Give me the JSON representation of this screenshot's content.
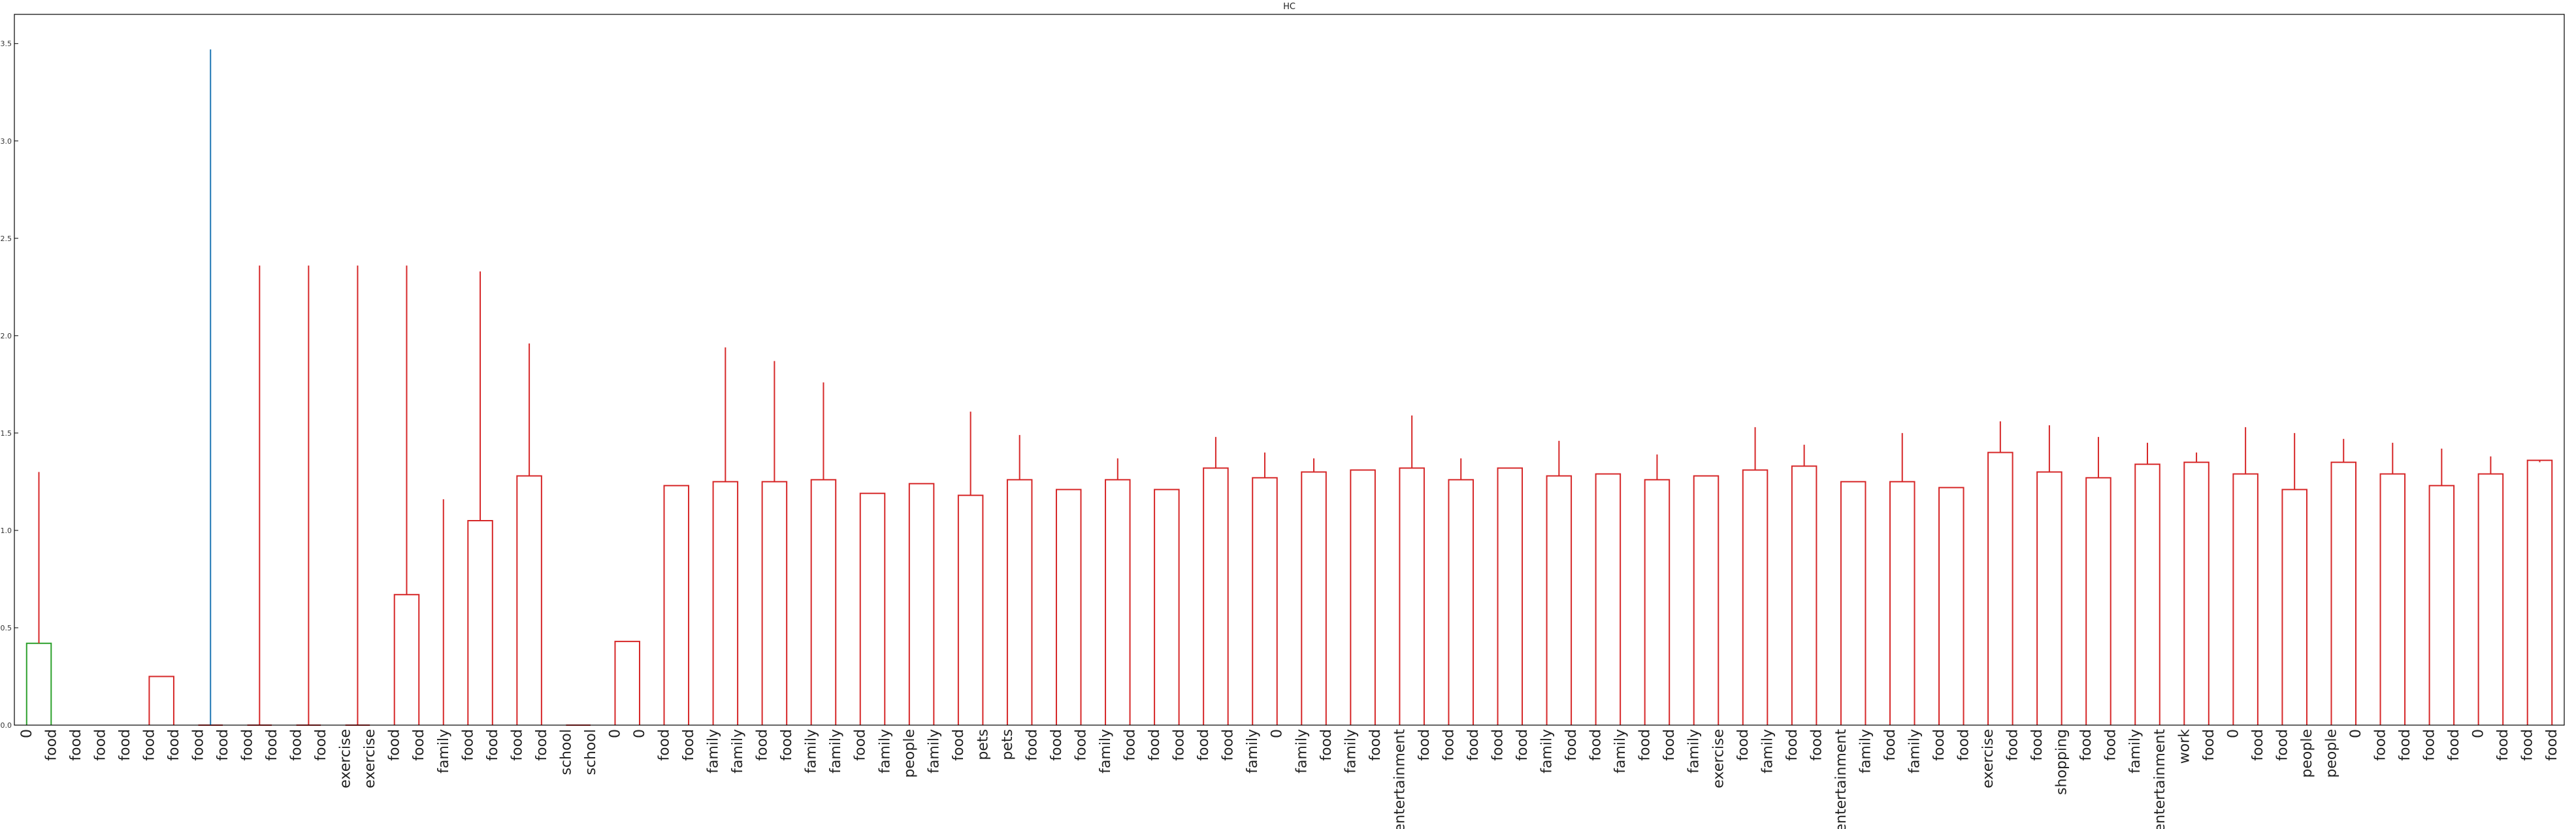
{
  "chart_data": {
    "type": "dendrogram",
    "title": "HC",
    "xlabel": "",
    "ylabel": "",
    "ylim": [
      0,
      3.65
    ],
    "yticks": [
      0.0,
      0.5,
      1.0,
      1.5,
      2.0,
      2.5,
      3.0,
      3.5
    ],
    "ytick_labels": [
      "0.0",
      "0.5",
      "1.0",
      "1.5",
      "2.0",
      "2.5",
      "3.0",
      "3.5"
    ],
    "grid": false,
    "colors": {
      "cluster_a": "#2ca02c",
      "cluster_b": "#d62728",
      "root": "#1f77b4",
      "axes": "#000000"
    },
    "leaves": [
      "0",
      "food",
      "food",
      "food",
      "food",
      "food",
      "food",
      "food",
      "food",
      "food",
      "food",
      "food",
      "food",
      "exercise",
      "exercise",
      "food",
      "food",
      "family",
      "food",
      "food",
      "food",
      "food",
      "school",
      "school",
      "0",
      "0",
      "food",
      "food",
      "family",
      "family",
      "food",
      "food",
      "family",
      "family",
      "food",
      "family",
      "people",
      "family",
      "food",
      "pets",
      "pets",
      "food",
      "food",
      "food",
      "family",
      "food",
      "food",
      "food",
      "food",
      "food",
      "family",
      "0",
      "family",
      "food",
      "family",
      "food",
      "entertainment",
      "food",
      "food",
      "food",
      "food",
      "food",
      "family",
      "food",
      "food",
      "family",
      "food",
      "food",
      "family",
      "exercise",
      "food",
      "family",
      "food",
      "food",
      "entertainment",
      "family",
      "food",
      "family",
      "food",
      "food",
      "exercise",
      "food",
      "food",
      "shopping",
      "food",
      "food",
      "family",
      "entertainment",
      "work",
      "food",
      "0",
      "food",
      "food",
      "people",
      "people",
      "0",
      "food",
      "food",
      "food",
      "food",
      "0",
      "food",
      "food",
      "food"
    ],
    "merges": [
      {
        "l": 0,
        "r": 1,
        "h": 0.42,
        "c": "cluster_a"
      },
      {
        "l": 106,
        "r": 1.5,
        "h": 0.0,
        "c": "cluster_a"
      },
      {
        "l": 107,
        "r": 2.5,
        "h": 0.0,
        "c": "cluster_a"
      },
      {
        "l": 108,
        "r": 3.5,
        "h": 0.0,
        "c": "cluster_a"
      },
      {
        "l": 5,
        "r": 6,
        "h": 0.25,
        "c": "cluster_b"
      },
      {
        "l": 7,
        "r": 8,
        "h": 0.0,
        "c": "cluster_b"
      },
      {
        "l": 9,
        "r": 10,
        "h": 0.0,
        "c": "cluster_b"
      },
      {
        "l": 11,
        "r": 12,
        "h": 0.0,
        "c": "cluster_b"
      },
      {
        "l": 13,
        "r": 14,
        "h": 0.0,
        "c": "cluster_b"
      },
      {
        "l": 15,
        "r": 16,
        "h": 0.67,
        "c": "cluster_b"
      },
      {
        "l": 18,
        "r": 19,
        "h": 1.05,
        "c": "cluster_b"
      },
      {
        "l": 17,
        "r": 118.5,
        "h": 1.16,
        "c": "cluster_b"
      },
      {
        "l": 20,
        "r": 21,
        "h": 1.28,
        "c": "cluster_b"
      },
      {
        "l": 119,
        "r": 120,
        "h": 1.33,
        "c": "cluster_b"
      },
      {
        "l": 117,
        "r": 121,
        "h": 1.71,
        "c": "cluster_b"
      },
      {
        "l": 22,
        "r": 23,
        "h": 0.0,
        "c": "cluster_b"
      },
      {
        "l": 24,
        "r": 25,
        "h": 0.43,
        "c": "cluster_b"
      },
      {
        "l": 26,
        "r": 27,
        "h": 1.23,
        "c": "cluster_b"
      },
      {
        "l": 28,
        "r": 29,
        "h": 1.25,
        "c": "cluster_b"
      },
      {
        "l": 30,
        "r": 31,
        "h": 1.25,
        "c": "cluster_b"
      },
      {
        "l": 32,
        "r": 33,
        "h": 1.26,
        "c": "cluster_b"
      },
      {
        "l": 126,
        "r": 127,
        "h": 1.33,
        "c": "cluster_b"
      },
      {
        "l": 125,
        "r": 128,
        "h": 1.36,
        "c": "cluster_b"
      },
      {
        "l": 34,
        "r": 35,
        "h": 1.19,
        "c": "cluster_b"
      },
      {
        "l": 36,
        "r": 37,
        "h": 1.24,
        "c": "cluster_b"
      },
      {
        "l": 38,
        "r": 39,
        "h": 1.18,
        "c": "cluster_b"
      },
      {
        "l": 40,
        "r": 41,
        "h": 1.26,
        "c": "cluster_b"
      },
      {
        "l": 131,
        "r": 132,
        "h": 1.47,
        "c": "cluster_b"
      },
      {
        "l": 130,
        "r": 133,
        "h": 1.49,
        "c": "cluster_b"
      },
      {
        "l": 129,
        "r": 134,
        "h": 1.61,
        "c": "cluster_b"
      },
      {
        "l": 42,
        "r": 43,
        "h": 1.21,
        "c": "cluster_b"
      },
      {
        "l": 44,
        "r": 45,
        "h": 1.26,
        "c": "cluster_b"
      },
      {
        "l": 136,
        "r": 137,
        "h": 1.31,
        "c": "cluster_b"
      },
      {
        "l": 135,
        "r": 138,
        "h": 1.37,
        "c": "cluster_b"
      },
      {
        "l": 46,
        "r": 47,
        "h": 1.21,
        "c": "cluster_b"
      },
      {
        "l": 48,
        "r": 49,
        "h": 1.32,
        "c": "cluster_b"
      },
      {
        "l": 50,
        "r": 51,
        "h": 1.27,
        "c": "cluster_b"
      },
      {
        "l": 52,
        "r": 53,
        "h": 1.3,
        "c": "cluster_b"
      },
      {
        "l": 142,
        "r": 143,
        "h": 1.33,
        "c": "cluster_b"
      },
      {
        "l": 141,
        "r": 144,
        "h": 1.37,
        "c": "cluster_b"
      },
      {
        "l": 140,
        "r": 145,
        "h": 1.4,
        "c": "cluster_b"
      },
      {
        "l": 139,
        "r": 146,
        "h": 1.48,
        "c": "cluster_b"
      },
      {
        "l": 54,
        "r": 55,
        "h": 1.31,
        "c": "cluster_b"
      },
      {
        "l": 56,
        "r": 57,
        "h": 1.32,
        "c": "cluster_b"
      },
      {
        "l": 58,
        "r": 59,
        "h": 1.26,
        "c": "cluster_b"
      },
      {
        "l": 149,
        "r": 150,
        "h": 1.32,
        "c": "cluster_b"
      },
      {
        "l": 148,
        "r": 151,
        "h": 1.37,
        "c": "cluster_b"
      },
      {
        "l": 60,
        "r": 61,
        "h": 1.32,
        "c": "cluster_b"
      },
      {
        "l": 62,
        "r": 63,
        "h": 1.28,
        "c": "cluster_b"
      },
      {
        "l": 153,
        "r": 154,
        "h": 1.4,
        "c": "cluster_b"
      },
      {
        "l": 64,
        "r": 65,
        "h": 1.29,
        "c": "cluster_b"
      },
      {
        "l": 66,
        "r": 67,
        "h": 1.26,
        "c": "cluster_b"
      },
      {
        "l": 156,
        "r": 157,
        "h": 1.38,
        "c": "cluster_b"
      },
      {
        "l": 155,
        "r": 158,
        "h": 1.39,
        "c": "cluster_b"
      },
      {
        "l": 152,
        "r": 159,
        "h": 1.46,
        "c": "cluster_b"
      },
      {
        "l": 68,
        "r": 69,
        "h": 1.28,
        "c": "cluster_b"
      },
      {
        "l": 70,
        "r": 71,
        "h": 1.31,
        "c": "cluster_b"
      },
      {
        "l": 72,
        "r": 73,
        "h": 1.33,
        "c": "cluster_b"
      },
      {
        "l": 162,
        "r": 163,
        "h": 1.41,
        "c": "cluster_b"
      },
      {
        "l": 161,
        "r": 164,
        "h": 1.44,
        "c": "cluster_b"
      },
      {
        "l": 74,
        "r": 75,
        "h": 1.25,
        "c": "cluster_b"
      },
      {
        "l": 76,
        "r": 77,
        "h": 1.25,
        "c": "cluster_b"
      },
      {
        "l": 166,
        "r": 167,
        "h": 1.45,
        "c": "cluster_b"
      },
      {
        "l": 165,
        "r": 168,
        "h": 1.5,
        "c": "cluster_b"
      },
      {
        "l": 160,
        "r": 169,
        "h": 1.53,
        "c": "cluster_b"
      },
      {
        "l": 78,
        "r": 79,
        "h": 1.22,
        "c": "cluster_b"
      },
      {
        "l": 80,
        "r": 81,
        "h": 1.4,
        "c": "cluster_b"
      },
      {
        "l": 82,
        "r": 83,
        "h": 1.3,
        "c": "cluster_b"
      },
      {
        "l": 84,
        "r": 85,
        "h": 1.27,
        "c": "cluster_b"
      },
      {
        "l": 86,
        "r": 87,
        "h": 1.34,
        "c": "cluster_b"
      },
      {
        "l": 88,
        "r": 89,
        "h": 1.35,
        "c": "cluster_b"
      },
      {
        "l": 174,
        "r": 175,
        "h": 1.4,
        "c": "cluster_b"
      },
      {
        "l": 173,
        "r": 176,
        "h": 1.45,
        "c": "cluster_b"
      },
      {
        "l": 172,
        "r": 177,
        "h": 1.48,
        "c": "cluster_b"
      },
      {
        "l": 90,
        "r": 91,
        "h": 1.29,
        "c": "cluster_b"
      },
      {
        "l": 92,
        "r": 93,
        "h": 1.21,
        "c": "cluster_b"
      },
      {
        "l": 94,
        "r": 95,
        "h": 1.35,
        "c": "cluster_b"
      },
      {
        "l": 96,
        "r": 97,
        "h": 1.29,
        "c": "cluster_b"
      },
      {
        "l": 98,
        "r": 99,
        "h": 1.23,
        "c": "cluster_b"
      },
      {
        "l": 100,
        "r": 101,
        "h": 1.29,
        "c": "cluster_b"
      },
      {
        "l": 102,
        "r": 103,
        "h": 1.36,
        "c": "cluster_b"
      },
      {
        "l": 104,
        "r": 105,
        "h": 1.3,
        "c": "cluster_b"
      },
      {
        "l": 184,
        "r": 185,
        "h": 1.35,
        "c": "cluster_b"
      },
      {
        "l": 183,
        "r": 186,
        "h": 1.38,
        "c": "cluster_b"
      },
      {
        "l": 182,
        "r": 187,
        "h": 1.42,
        "c": "cluster_b"
      },
      {
        "l": 181,
        "r": 188,
        "h": 1.45,
        "c": "cluster_b"
      },
      {
        "l": 180,
        "r": 189,
        "h": 1.47,
        "c": "cluster_b"
      },
      {
        "l": 179,
        "r": 190,
        "h": 1.5,
        "c": "cluster_b"
      },
      {
        "l": 178,
        "r": 191,
        "h": 1.53,
        "c": "cluster_b"
      },
      {
        "l": 171,
        "r": 192,
        "h": 1.54,
        "c": "cluster_b"
      },
      {
        "l": 170,
        "r": 193,
        "h": 1.56,
        "c": "cluster_b"
      },
      {
        "l": 147,
        "r": 194,
        "h": 1.59,
        "c": "cluster_b"
      },
      {
        "l": 124,
        "r": 195,
        "h": 1.76,
        "c": "cluster_b"
      },
      {
        "l": 123,
        "r": 196,
        "h": 1.87,
        "c": "cluster_b"
      },
      {
        "l": 122,
        "r": 197,
        "h": 1.94,
        "c": "cluster_b"
      },
      {
        "l": 116,
        "r": 198,
        "h": 1.96,
        "c": "cluster_b"
      },
      {
        "l": 115,
        "r": 199,
        "h": 2.22,
        "c": "cluster_b"
      },
      {
        "l": 114,
        "r": 200,
        "h": 2.33,
        "c": "cluster_b"
      },
      {
        "l": 113,
        "r": 201,
        "h": 2.36,
        "c": "cluster_b"
      },
      {
        "l": 112,
        "r": 202,
        "h": 2.36,
        "c": "cluster_b"
      },
      {
        "l": 111,
        "r": 203,
        "h": 2.36,
        "c": "cluster_b"
      },
      {
        "l": 110,
        "r": 204,
        "h": 2.36,
        "c": "cluster_b"
      },
      {
        "l": 109,
        "r": 205,
        "h": 3.47,
        "c": "root"
      }
    ]
  }
}
